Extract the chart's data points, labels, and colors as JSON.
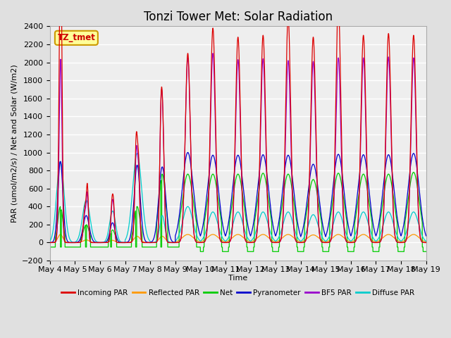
{
  "title": "Tonzi Tower Met: Solar Radiation",
  "ylabel": "PAR (umol/m2/s) / Net and Solar (W/m2)",
  "xlabel": "Time",
  "ylim": [
    -200,
    2400
  ],
  "yticks": [
    -200,
    0,
    200,
    400,
    600,
    800,
    1000,
    1200,
    1400,
    1600,
    1800,
    2000,
    2200,
    2400
  ],
  "start_day": 4,
  "n_days": 15,
  "points_per_day": 288,
  "legend_entries": [
    {
      "label": "Incoming PAR",
      "color": "#dd0000"
    },
    {
      "label": "Reflected PAR",
      "color": "#ff9900"
    },
    {
      "label": "Net",
      "color": "#00cc00"
    },
    {
      "label": "Pyranometer",
      "color": "#0000cc"
    },
    {
      "label": "BF5 PAR",
      "color": "#9900cc"
    },
    {
      "label": "Diffuse PAR",
      "color": "#00cccc"
    }
  ],
  "annotation_text": "TZ_tmet",
  "annotation_color": "#cc0000",
  "annotation_bg": "#ffff99",
  "annotation_border": "#cc9900",
  "background_color": "#e0e0e0",
  "plot_bg_color": "#eeeeee",
  "grid_color": "#ffffff",
  "title_fontsize": 12,
  "label_fontsize": 8,
  "tick_fontsize": 8
}
